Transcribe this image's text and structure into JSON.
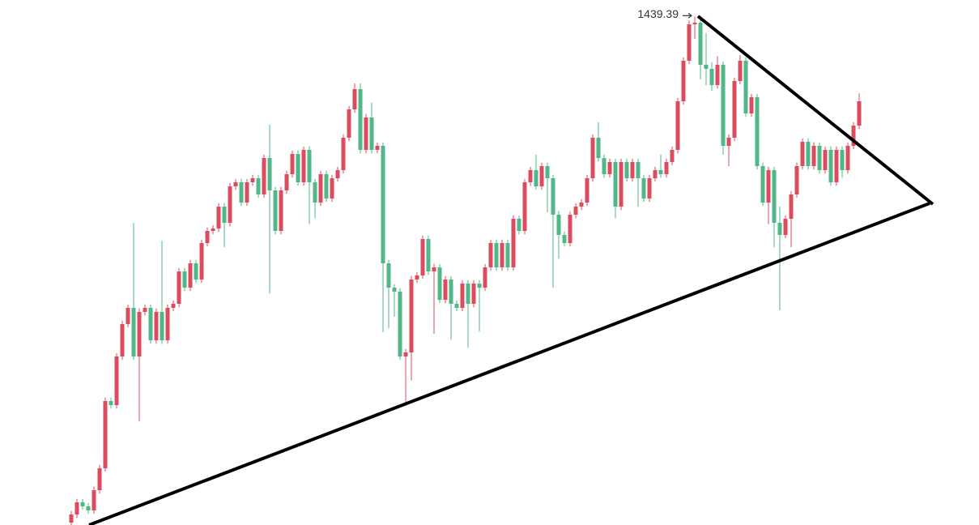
{
  "chart_data": {
    "type": "candlestick",
    "up_color": "#dc4c5e",
    "down_color": "#52b788",
    "ylim": [
      1000,
      1453.6
    ],
    "ohlc": [
      [
        1002.1,
        1012.1,
        999.1,
        1009.1
      ],
      [
        1009.1,
        1022.6,
        1006.1,
        1019.6
      ],
      [
        1019.6,
        1022.6,
        1013.1,
        1016.1
      ],
      [
        1016.1,
        1019.1,
        1009.6,
        1012.6
      ],
      [
        1012.6,
        1033.1,
        1009.6,
        1030.1
      ],
      [
        1030.1,
        1052,
        1027.1,
        1049.0
      ],
      [
        1049.0,
        1110.1,
        1046,
        1107.1
      ],
      [
        1107.1,
        1110.1,
        1100.6,
        1103.6
      ],
      [
        1103.6,
        1148.6,
        1100.6,
        1145.6
      ],
      [
        1145.6,
        1176.6,
        1142.6,
        1173.6
      ],
      [
        1173.6,
        1190.6,
        1170.6,
        1187.6
      ],
      [
        1187.6,
        1261,
        1142.6,
        1145.6
      ],
      [
        1145.6,
        1187.1,
        1089.6,
        1184.1
      ],
      [
        1184.1,
        1190.6,
        1181.1,
        1187.6
      ],
      [
        1187.6,
        1190.6,
        1156.6,
        1159.6
      ],
      [
        1159.6,
        1187.1,
        1156.6,
        1184.1
      ],
      [
        1184.1,
        1245.7,
        1156.6,
        1159.6
      ],
      [
        1159.6,
        1190.6,
        1156.6,
        1187.6
      ],
      [
        1187.6,
        1194.1,
        1184.6,
        1191.1
      ],
      [
        1191.1,
        1222.1,
        1188.1,
        1219.1
      ],
      [
        1219.1,
        1222.1,
        1202.1,
        1205.1
      ],
      [
        1205.1,
        1229.1,
        1202.1,
        1226.1
      ],
      [
        1226.1,
        1229.1,
        1209.1,
        1212.1
      ],
      [
        1212.1,
        1246.6,
        1209.1,
        1243.6
      ],
      [
        1243.6,
        1257.1,
        1240.6,
        1254.1
      ],
      [
        1254.1,
        1259.2,
        1251.1,
        1256.2
      ],
      [
        1256.2,
        1278.1,
        1253.2,
        1275.1
      ],
      [
        1275.1,
        1278.1,
        1240,
        1261.1
      ],
      [
        1261.1,
        1295.6,
        1258.1,
        1292.6
      ],
      [
        1292.6,
        1299.1,
        1289.6,
        1296.1
      ],
      [
        1296.1,
        1299.1,
        1275.6,
        1278.6
      ],
      [
        1278.6,
        1299.1,
        1275.6,
        1296.1
      ],
      [
        1296.1,
        1302.6,
        1293.1,
        1299.6
      ],
      [
        1299.6,
        1302.6,
        1282.6,
        1285.6
      ],
      [
        1285.6,
        1320.1,
        1282.6,
        1317.1
      ],
      [
        1317.1,
        1346,
        1200,
        1289.1
      ],
      [
        1289.1,
        1292.1,
        1251.1,
        1254.1
      ],
      [
        1254.1,
        1292.1,
        1251.1,
        1289.1
      ],
      [
        1289.1,
        1306.1,
        1286.1,
        1303.1
      ],
      [
        1303.1,
        1323.6,
        1300.1,
        1320.6
      ],
      [
        1320.6,
        1323.6,
        1293.1,
        1296.1
      ],
      [
        1296.1,
        1327.1,
        1293.1,
        1324.1
      ],
      [
        1324.1,
        1327.1,
        1260,
        1296.1
      ],
      [
        1296.1,
        1299.1,
        1265,
        1278.6
      ],
      [
        1278.6,
        1306.1,
        1275.6,
        1303.1
      ],
      [
        1303.1,
        1306.1,
        1279.1,
        1282.1
      ],
      [
        1282.1,
        1302.6,
        1279.1,
        1299.6
      ],
      [
        1299.6,
        1309.6,
        1296.6,
        1306.6
      ],
      [
        1306.6,
        1337.6,
        1303.6,
        1334.6
      ],
      [
        1334.6,
        1362.1,
        1331.6,
        1359.1
      ],
      [
        1359.1,
        1381.5,
        1356.1,
        1376.6
      ],
      [
        1376.6,
        1381.5,
        1321.1,
        1324.1
      ],
      [
        1324.1,
        1355.1,
        1321.1,
        1352.1
      ],
      [
        1352.1,
        1365,
        1321.1,
        1324.1
      ],
      [
        1324.1,
        1330.6,
        1321.1,
        1327.6
      ],
      [
        1327.6,
        1330.6,
        1166.6,
        1226.1
      ],
      [
        1226.1,
        1229.1,
        1170,
        1205.1
      ],
      [
        1205.1,
        1208.1,
        1180,
        1201.6
      ],
      [
        1201.6,
        1204.6,
        1142.6,
        1145.6
      ],
      [
        1145.6,
        1152.1,
        1105.7,
        1149.1
      ],
      [
        1149.1,
        1215.1,
        1125,
        1212.1
      ],
      [
        1212.1,
        1218.6,
        1209.1,
        1215.6
      ],
      [
        1215.6,
        1250.1,
        1212.6,
        1247.1
      ],
      [
        1247.1,
        1250.1,
        1216.1,
        1219.1
      ],
      [
        1219.1,
        1225.6,
        1165,
        1222.6
      ],
      [
        1222.6,
        1225.6,
        1191.6,
        1194.6
      ],
      [
        1194.6,
        1215.1,
        1191.6,
        1212.1
      ],
      [
        1212.1,
        1215.1,
        1160,
        1191.1
      ],
      [
        1191.1,
        1194.1,
        1184.6,
        1187.6
      ],
      [
        1187.6,
        1211.6,
        1184.6,
        1208.6
      ],
      [
        1208.6,
        1211.6,
        1153,
        1191.1
      ],
      [
        1191.1,
        1211.6,
        1188.1,
        1208.6
      ],
      [
        1208.6,
        1211.6,
        1167,
        1205.1
      ],
      [
        1205.1,
        1225.6,
        1202.1,
        1222.6
      ],
      [
        1222.6,
        1246.6,
        1219.6,
        1243.6
      ],
      [
        1243.6,
        1246.6,
        1219.6,
        1222.6
      ],
      [
        1222.6,
        1246.6,
        1219.6,
        1243.6
      ],
      [
        1243.6,
        1246.6,
        1219.6,
        1222.6
      ],
      [
        1222.6,
        1267.6,
        1219.6,
        1264.6
      ],
      [
        1264.6,
        1267.6,
        1251.1,
        1254.1
      ],
      [
        1254.1,
        1299.1,
        1251.1,
        1296.1
      ],
      [
        1296.1,
        1309.6,
        1293.1,
        1306.6
      ],
      [
        1306.6,
        1320,
        1289.6,
        1292.6
      ],
      [
        1292.6,
        1313.1,
        1289.6,
        1310.1
      ],
      [
        1310.1,
        1313.1,
        1270,
        1299.6
      ],
      [
        1299.6,
        1302.6,
        1205,
        1268.1
      ],
      [
        1268.1,
        1271.1,
        1230,
        1250.6
      ],
      [
        1250.6,
        1253.6,
        1240.6,
        1243.6
      ],
      [
        1243.6,
        1271.1,
        1240.6,
        1268.1
      ],
      [
        1268.1,
        1278.1,
        1265.1,
        1275.1
      ],
      [
        1275.1,
        1281.6,
        1272.1,
        1278.6
      ],
      [
        1278.6,
        1302.6,
        1275.6,
        1299.6
      ],
      [
        1299.6,
        1337.6,
        1296.6,
        1334.6
      ],
      [
        1334.6,
        1348,
        1314.1,
        1317.1
      ],
      [
        1317.1,
        1320.1,
        1300.1,
        1303.1
      ],
      [
        1303.1,
        1316.6,
        1300.1,
        1313.6
      ],
      [
        1313.6,
        1316.6,
        1265,
        1275.1
      ],
      [
        1275.1,
        1316.6,
        1272.1,
        1313.6
      ],
      [
        1313.6,
        1316.6,
        1296.6,
        1299.6
      ],
      [
        1299.6,
        1316.6,
        1296.6,
        1313.6
      ],
      [
        1313.6,
        1316.6,
        1275,
        1299.6
      ],
      [
        1299.6,
        1302.6,
        1279.1,
        1282.1
      ],
      [
        1282.1,
        1302.6,
        1279.1,
        1299.6
      ],
      [
        1299.6,
        1309.6,
        1296.6,
        1306.6
      ],
      [
        1306.6,
        1320,
        1300.1,
        1303.1
      ],
      [
        1303.1,
        1316.6,
        1300.1,
        1313.6
      ],
      [
        1313.6,
        1327.1,
        1310.6,
        1324.1
      ],
      [
        1324.1,
        1369.1,
        1321.1,
        1366.1
      ],
      [
        1366.1,
        1404.1,
        1363.1,
        1401.1
      ],
      [
        1401.1,
        1436,
        1398.1,
        1432.6
      ],
      [
        1432.6,
        1439.39,
        1420,
        1434.0
      ],
      [
        1434.0,
        1437,
        1385,
        1397.6
      ],
      [
        1397.6,
        1425,
        1380,
        1394.1
      ],
      [
        1394.1,
        1400,
        1375,
        1380.1
      ],
      [
        1380.1,
        1405,
        1377.1,
        1397.6
      ],
      [
        1397.6,
        1400.6,
        1320,
        1327.6
      ],
      [
        1327.6,
        1337.6,
        1310,
        1334.6
      ],
      [
        1334.6,
        1386.6,
        1331.6,
        1383.6
      ],
      [
        1383.6,
        1406,
        1380.6,
        1401.1
      ],
      [
        1401.1,
        1404.1,
        1352.6,
        1355.6
      ],
      [
        1355.6,
        1372.6,
        1352.6,
        1369.6
      ],
      [
        1369.6,
        1372.6,
        1307.1,
        1310.1
      ],
      [
        1310.1,
        1313.1,
        1275.6,
        1278.6
      ],
      [
        1278.6,
        1309.6,
        1260,
        1306.6
      ],
      [
        1306.6,
        1309.6,
        1240,
        1261.1
      ],
      [
        1261.1,
        1275,
        1185.5,
        1250.6
      ],
      [
        1250.6,
        1267.6,
        1247.6,
        1264.6
      ],
      [
        1264.6,
        1288.6,
        1240,
        1285.6
      ],
      [
        1285.6,
        1313.1,
        1282.6,
        1310.1
      ],
      [
        1310.1,
        1334.1,
        1307.1,
        1331.1
      ],
      [
        1331.1,
        1334.1,
        1307.1,
        1310.1
      ],
      [
        1310.1,
        1330.6,
        1307.1,
        1327.6
      ],
      [
        1327.6,
        1330.6,
        1303.6,
        1306.6
      ],
      [
        1306.6,
        1327.1,
        1303.6,
        1324.1
      ],
      [
        1324.1,
        1327.1,
        1293.1,
        1296.1
      ],
      [
        1296.1,
        1327.1,
        1293.1,
        1324.1
      ],
      [
        1324.1,
        1327.1,
        1300,
        1306.6
      ],
      [
        1306.6,
        1330.6,
        1303.6,
        1327.6
      ],
      [
        1327.6,
        1348.1,
        1324.6,
        1345.1
      ],
      [
        1345.1,
        1373,
        1342.1,
        1366.1
      ]
    ]
  }
}
